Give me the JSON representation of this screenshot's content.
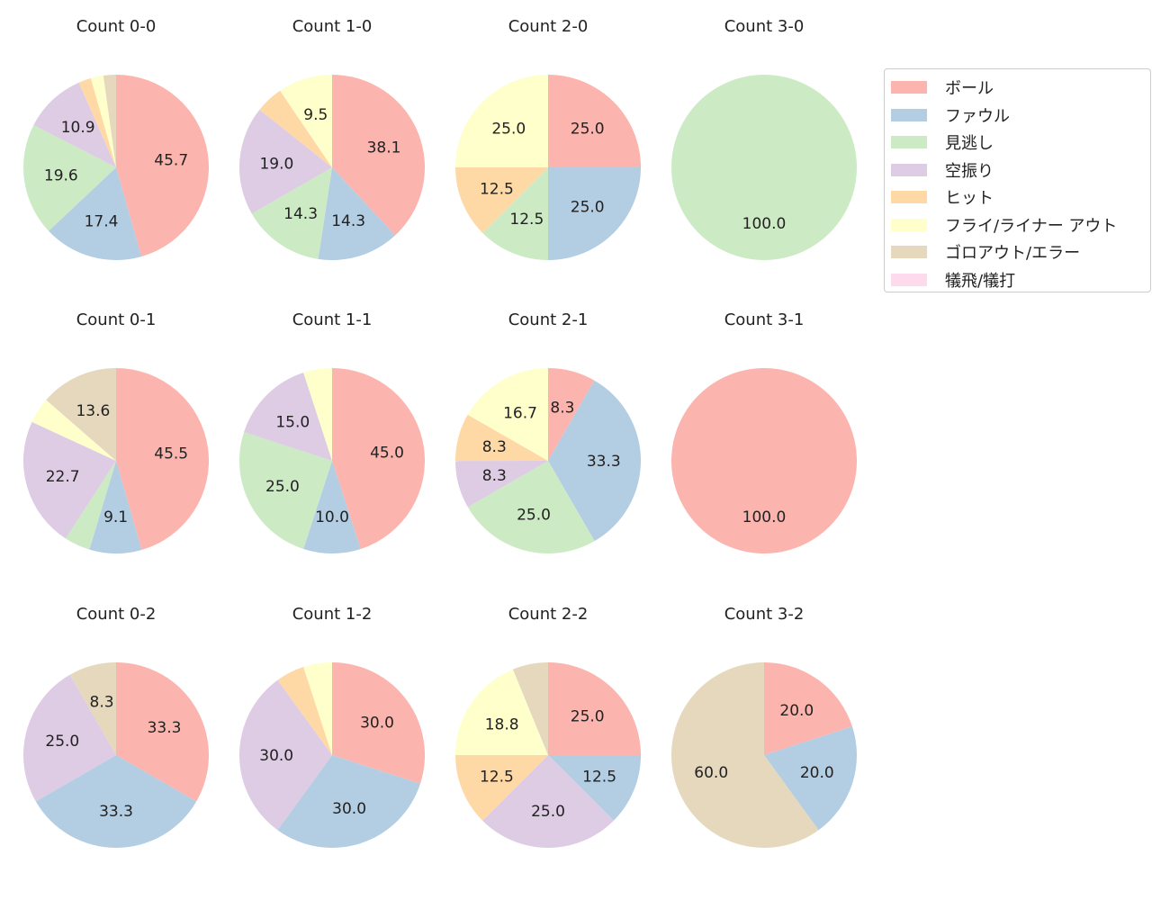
{
  "chart_data": {
    "type": "pie",
    "categories": [
      "ボール",
      "ファウル",
      "見逃し",
      "空振り",
      "ヒット",
      "フライ/ライナー アウト",
      "ゴロアウト/エラー",
      "犠飛/犠打"
    ],
    "colors": [
      "#fbb4ae",
      "#b3cde3",
      "#ccebc5",
      "#decbe4",
      "#fed9a6",
      "#ffffcc",
      "#e5d8bd",
      "#fddaec"
    ],
    "legend_placement": "top-right",
    "pies": [
      {
        "title": "Count 0-0",
        "values": [
          45.7,
          17.4,
          19.6,
          10.9,
          2.2,
          2.2,
          2.2,
          0
        ]
      },
      {
        "title": "Count 1-0",
        "values": [
          38.1,
          14.3,
          14.3,
          19.0,
          4.8,
          9.5,
          0,
          0
        ]
      },
      {
        "title": "Count 2-0",
        "values": [
          25.0,
          25.0,
          12.5,
          0,
          12.5,
          25.0,
          0,
          0
        ]
      },
      {
        "title": "Count 3-0",
        "values": [
          0,
          0,
          100.0,
          0,
          0,
          0,
          0,
          0
        ]
      },
      {
        "title": "Count 0-1",
        "values": [
          45.5,
          9.1,
          4.5,
          22.7,
          0,
          4.5,
          13.6,
          0
        ]
      },
      {
        "title": "Count 1-1",
        "values": [
          45.0,
          10.0,
          25.0,
          15.0,
          0,
          5.0,
          0,
          0
        ]
      },
      {
        "title": "Count 2-1",
        "values": [
          8.3,
          33.3,
          25.0,
          8.3,
          8.3,
          16.7,
          0,
          0
        ]
      },
      {
        "title": "Count 3-1",
        "values": [
          100.0,
          0,
          0,
          0,
          0,
          0,
          0,
          0
        ]
      },
      {
        "title": "Count 0-2",
        "values": [
          33.3,
          33.3,
          0,
          25.0,
          0,
          0,
          8.3,
          0
        ]
      },
      {
        "title": "Count 1-2",
        "values": [
          30.0,
          30.0,
          0,
          30.0,
          5.0,
          5.0,
          0,
          0
        ]
      },
      {
        "title": "Count 2-2",
        "values": [
          25.0,
          12.5,
          0,
          25.0,
          12.5,
          18.8,
          6.2,
          0
        ]
      },
      {
        "title": "Count 3-2",
        "values": [
          20.0,
          20.0,
          0,
          0,
          0,
          0,
          60.0,
          0
        ]
      }
    ]
  }
}
